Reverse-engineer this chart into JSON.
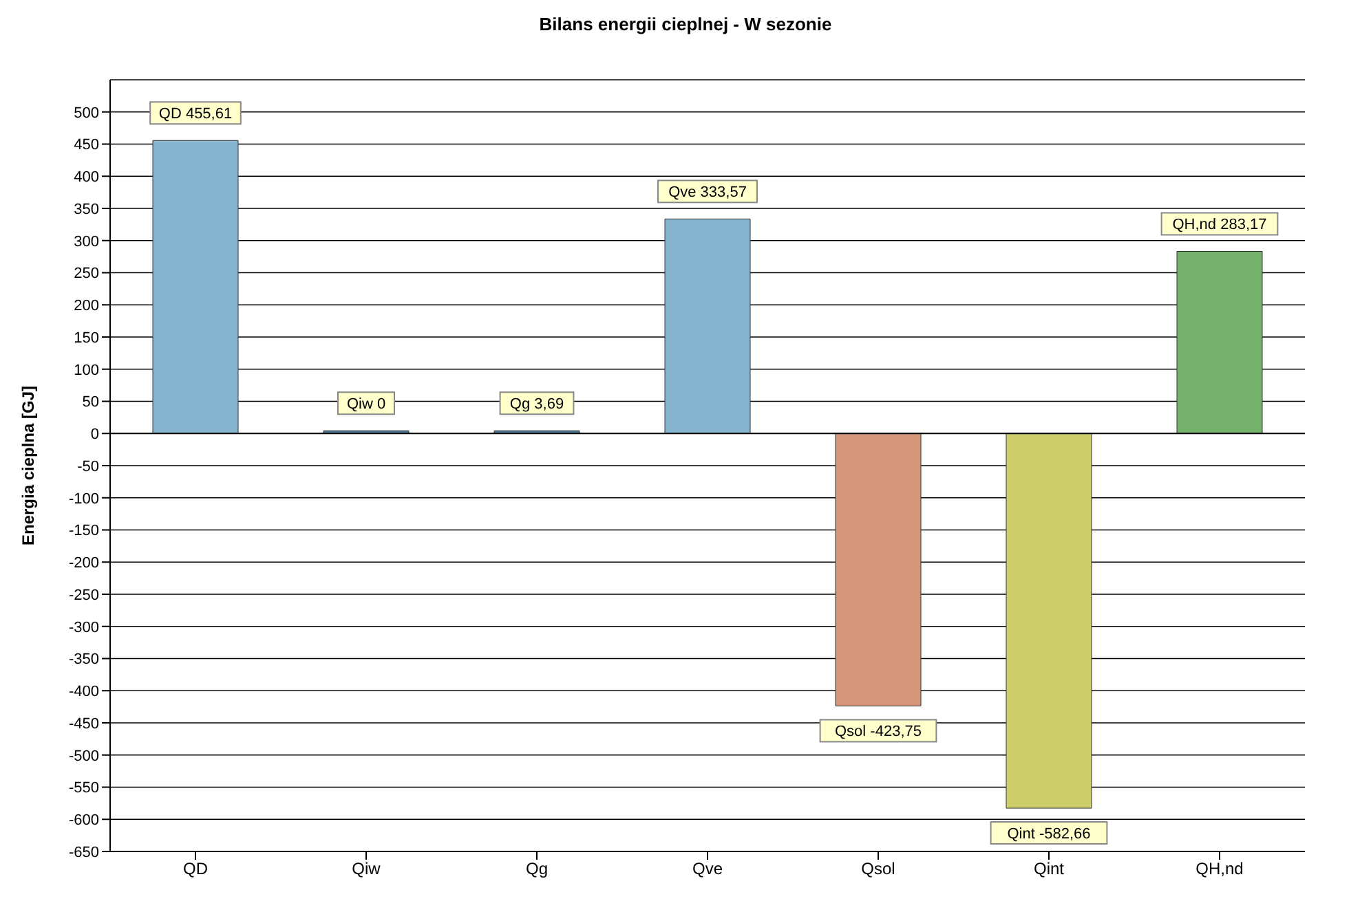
{
  "chart_data": {
    "type": "bar",
    "title": "Bilans energii cieplnej - W sezonie",
    "ylabel": "Energia cieplna [GJ]",
    "categories": [
      "QD",
      "Qiw",
      "Qg",
      "Qve",
      "Qsol",
      "Qint",
      "QH,nd"
    ],
    "values": [
      455.61,
      0,
      3.69,
      333.57,
      -423.75,
      -582.66,
      283.17
    ],
    "colors": [
      "#86b5d0",
      "#4a7a9a",
      "#4a7a9a",
      "#86b5d0",
      "#d4967a",
      "#cdcd6a",
      "#76b26e"
    ],
    "value_labels": [
      "QD 455,61",
      "Qiw 0",
      "Qg 3,69",
      "Qve 333,57",
      "Qsol -423,75",
      "Qint -582,66",
      "QH,nd 283,17"
    ],
    "ylim": [
      -650,
      550
    ],
    "yticks": [
      -650,
      -600,
      -550,
      -500,
      -450,
      -400,
      -350,
      -300,
      -250,
      -200,
      -150,
      -100,
      -50,
      0,
      50,
      100,
      150,
      200,
      250,
      300,
      350,
      400,
      450,
      500
    ],
    "grid": "y"
  }
}
